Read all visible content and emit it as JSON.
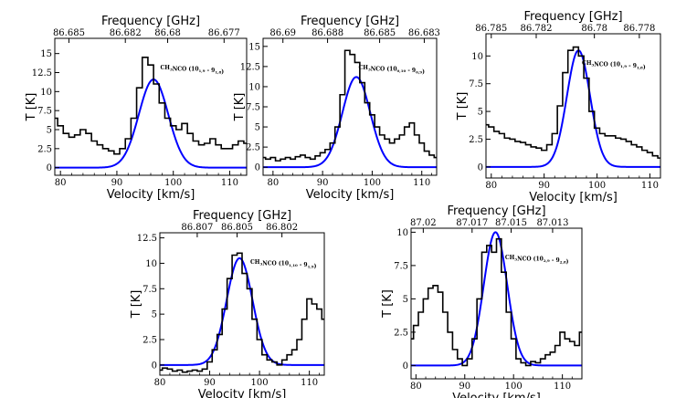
{
  "chart_data": [
    {
      "type": "line",
      "panel": "top-left",
      "xlabel": "Velocity [km/s]",
      "ylabel": "T [K]",
      "top_axis_label": "Frequency [GHz]",
      "top_ticks": [
        "86.685",
        "86.682",
        "86.68",
        "86.677"
      ],
      "top_ticks_vel": [
        81.5,
        91.5,
        99.0,
        109.0
      ],
      "xlim": [
        79,
        113
      ],
      "ylim": [
        -1,
        17
      ],
      "xticks": [
        80,
        90,
        100,
        110
      ],
      "xtick_labels": [
        "80",
        "90",
        "100",
        "110"
      ],
      "yticks": [
        0,
        2.5,
        5,
        7.5,
        10,
        12.5,
        15
      ],
      "ytick_labels": [
        "0",
        "2.5",
        "5",
        "7.5",
        "10",
        "12.5",
        "15"
      ],
      "annotation": {
        "main": "CH",
        "sub1": "3",
        "mid": "NCO (10",
        "sub2": "1,9",
        "end": " - 9",
        "sub3": "1,8",
        "close": ")"
      },
      "series": [
        {
          "name": "observed",
          "color": "#000000",
          "style": "steps",
          "x": [
            79,
            80,
            81,
            82,
            83,
            84,
            85,
            86,
            87,
            88,
            89,
            90,
            91,
            92,
            93,
            94,
            95,
            96,
            97,
            98,
            99,
            100,
            101,
            102,
            103,
            104,
            105,
            106,
            107,
            108,
            109,
            110,
            111,
            112,
            113
          ],
          "y": [
            6.5,
            5.5,
            4.5,
            4.0,
            4.3,
            5.0,
            4.5,
            3.5,
            3.0,
            2.5,
            2.2,
            1.8,
            2.5,
            3.8,
            6.5,
            10.5,
            14.5,
            13.5,
            11.0,
            8.5,
            6.5,
            5.5,
            5.0,
            5.8,
            4.5,
            3.5,
            3.0,
            3.2,
            3.8,
            3.0,
            2.5,
            2.5,
            3.0,
            3.5,
            3.2
          ]
        },
        {
          "name": "model",
          "color": "#0000ff",
          "style": "line",
          "peak": 11.6,
          "center": 96.5,
          "sigma": 2.6,
          "baseline": 0
        }
      ]
    },
    {
      "type": "line",
      "panel": "top-middle",
      "xlabel": "Velocity [km/s]",
      "ylabel": "T [K]",
      "top_axis_label": "Frequency [GHz]",
      "top_ticks": [
        "86.69",
        "86.688",
        "86.685",
        "86.683"
      ],
      "top_ticks_vel": [
        82.0,
        91.0,
        101.5,
        110.5
      ],
      "xlim": [
        78,
        113
      ],
      "ylim": [
        -1,
        16
      ],
      "xticks": [
        80,
        90,
        100,
        110
      ],
      "xtick_labels": [
        "80",
        "90",
        "100",
        "110"
      ],
      "yticks": [
        0,
        2.5,
        5,
        7.5,
        10,
        12.5,
        15
      ],
      "ytick_labels": [
        "0",
        "2.5",
        "5",
        "7.5",
        "10",
        "12.5",
        "15"
      ],
      "annotation": {
        "main": "CH",
        "sub1": "3",
        "mid": "NCO (10",
        "sub2": "0,10",
        "end": " - 9",
        "sub3": "0,9",
        "close": ")"
      },
      "series": [
        {
          "name": "observed",
          "color": "#000000",
          "style": "steps",
          "x": [
            78,
            79,
            80,
            81,
            82,
            83,
            84,
            85,
            86,
            87,
            88,
            89,
            90,
            91,
            92,
            93,
            94,
            95,
            96,
            97,
            98,
            99,
            100,
            101,
            102,
            103,
            104,
            105,
            106,
            107,
            108,
            109,
            110,
            111,
            112,
            113
          ],
          "y": [
            1.2,
            1.0,
            1.2,
            0.8,
            1.0,
            1.2,
            1.0,
            1.3,
            1.5,
            1.2,
            1.0,
            1.4,
            1.8,
            2.2,
            3.0,
            5.0,
            9.0,
            14.5,
            14.0,
            13.0,
            10.5,
            8.0,
            6.5,
            5.0,
            4.0,
            3.5,
            3.0,
            3.5,
            4.0,
            5.0,
            5.5,
            4.0,
            3.0,
            2.0,
            1.5,
            1.2
          ]
        },
        {
          "name": "model",
          "color": "#0000ff",
          "style": "line",
          "peak": 11.2,
          "center": 96.8,
          "sigma": 2.8,
          "baseline": 0
        }
      ]
    },
    {
      "type": "line",
      "panel": "top-right",
      "xlabel": "Velocity [km/s]",
      "ylabel": "T [K]",
      "top_axis_label": "Frequency [GHz]",
      "top_ticks": [
        "86.785",
        "86.782",
        "86.78",
        "86.778"
      ],
      "top_ticks_vel": [
        80.0,
        88.5,
        99.5,
        108.0
      ],
      "xlim": [
        79,
        112
      ],
      "ylim": [
        -1,
        12
      ],
      "xticks": [
        80,
        90,
        100,
        110
      ],
      "xtick_labels": [
        "80",
        "90",
        "100",
        "110"
      ],
      "yticks": [
        0,
        2.5,
        5,
        7.5,
        10
      ],
      "ytick_labels": [
        "0",
        "2.5",
        "5",
        "7.5",
        "10"
      ],
      "annotation": {
        "main": "CH",
        "sub1": "3",
        "mid": "NCO (10",
        "sub2": "1,9",
        "end": " - 9",
        "sub3": "1,8",
        "close": ")"
      },
      "series": [
        {
          "name": "observed",
          "color": "#000000",
          "style": "steps",
          "x": [
            79,
            80,
            81,
            82,
            83,
            84,
            85,
            86,
            87,
            88,
            89,
            90,
            91,
            92,
            93,
            94,
            95,
            96,
            97,
            98,
            99,
            100,
            101,
            102,
            103,
            104,
            105,
            106,
            107,
            108,
            109,
            110,
            111,
            112
          ],
          "y": [
            3.8,
            3.6,
            3.2,
            3.0,
            2.6,
            2.5,
            2.3,
            2.2,
            2.0,
            1.8,
            1.7,
            1.5,
            2.0,
            3.0,
            5.5,
            8.5,
            10.5,
            10.8,
            10.0,
            8.0,
            5.0,
            3.5,
            3.0,
            2.8,
            2.8,
            2.6,
            2.5,
            2.3,
            2.0,
            1.8,
            1.5,
            1.3,
            1.0,
            0.8
          ]
        },
        {
          "name": "model",
          "color": "#0000ff",
          "style": "line",
          "peak": 10.5,
          "center": 96.5,
          "sigma": 2.2,
          "baseline": 0
        }
      ]
    },
    {
      "type": "line",
      "panel": "bottom-left",
      "xlabel": "Velocity [km/s]",
      "ylabel": "T [K]",
      "top_axis_label": "Frequency [GHz]",
      "top_ticks": [
        "86.807",
        "86.805",
        "86.802"
      ],
      "top_ticks_vel": [
        87.5,
        95.5,
        104.5
      ],
      "xlim": [
        80,
        113
      ],
      "ylim": [
        -1,
        13
      ],
      "xticks": [
        80,
        90,
        100,
        110
      ],
      "xtick_labels": [
        "80",
        "90",
        "100",
        "110"
      ],
      "yticks": [
        0,
        2.5,
        5,
        7.5,
        10,
        12.5
      ],
      "ytick_labels": [
        "0",
        "2.5",
        "5",
        "7.5",
        "10",
        "12.5"
      ],
      "annotation": {
        "main": "CH",
        "sub1": "3",
        "mid": "NCO (10",
        "sub2": "1,10",
        "end": " - 9",
        "sub3": "1,9",
        "close": ")"
      },
      "series": [
        {
          "name": "observed",
          "color": "#000000",
          "style": "steps",
          "x": [
            80,
            81,
            82,
            83,
            84,
            85,
            86,
            87,
            88,
            89,
            90,
            91,
            92,
            93,
            94,
            95,
            96,
            97,
            98,
            99,
            100,
            101,
            102,
            103,
            104,
            105,
            106,
            107,
            108,
            109,
            110,
            111,
            112,
            113
          ],
          "y": [
            -0.5,
            -0.3,
            -0.4,
            -0.6,
            -0.5,
            -0.7,
            -0.6,
            -0.5,
            -0.6,
            -0.4,
            0.3,
            1.5,
            3.0,
            5.5,
            8.5,
            10.8,
            11.0,
            9.0,
            7.5,
            4.5,
            2.5,
            1.0,
            0.5,
            0.3,
            0.0,
            0.5,
            1.0,
            1.5,
            2.5,
            4.5,
            6.5,
            6.0,
            5.5,
            4.5
          ]
        },
        {
          "name": "model",
          "color": "#0000ff",
          "style": "line",
          "peak": 10.5,
          "center": 96.0,
          "sigma": 2.6,
          "baseline": 0
        }
      ]
    },
    {
      "type": "line",
      "panel": "bottom-right",
      "xlabel": "Velocity [km/s]",
      "ylabel": "T [K]",
      "top_axis_label": "Frequency [GHz]",
      "top_ticks": [
        "87.02",
        "87.017",
        "87.015",
        "87.013"
      ],
      "top_ticks_vel": [
        81.5,
        91.5,
        99.5,
        108.0
      ],
      "xlim": [
        79,
        114
      ],
      "ylim": [
        -1,
        10.3
      ],
      "xticks": [
        80,
        90,
        100,
        110
      ],
      "xtick_labels": [
        "80",
        "90",
        "100",
        "110"
      ],
      "yticks": [
        0,
        2.5,
        5,
        7.5,
        10
      ],
      "ytick_labels": [
        "0",
        "2.5",
        "5",
        "7.5",
        "10"
      ],
      "annotation": {
        "main": "CH",
        "sub1": "3",
        "mid": "NCO (10",
        "sub2": "2,9",
        "end": " - 9",
        "sub3": "2,8",
        "close": ")"
      },
      "series": [
        {
          "name": "observed",
          "color": "#000000",
          "style": "steps",
          "x": [
            79,
            80,
            81,
            82,
            83,
            84,
            85,
            86,
            87,
            88,
            89,
            90,
            91,
            92,
            93,
            94,
            95,
            96,
            97,
            98,
            99,
            100,
            101,
            102,
            103,
            104,
            105,
            106,
            107,
            108,
            109,
            110,
            111,
            112,
            113,
            114
          ],
          "y": [
            2.0,
            3.0,
            4.0,
            5.0,
            5.8,
            6.0,
            5.5,
            4.0,
            2.5,
            1.2,
            0.5,
            0.0,
            0.5,
            2.0,
            5.0,
            8.5,
            9.0,
            8.5,
            9.5,
            7.0,
            4.0,
            2.0,
            0.5,
            0.2,
            0.0,
            0.3,
            0.2,
            0.5,
            0.8,
            1.0,
            1.5,
            2.5,
            2.0,
            1.8,
            1.5,
            2.5
          ]
        },
        {
          "name": "model",
          "color": "#0000ff",
          "style": "line",
          "peak": 10.0,
          "center": 96.3,
          "sigma": 2.4,
          "baseline": 0
        }
      ]
    }
  ]
}
